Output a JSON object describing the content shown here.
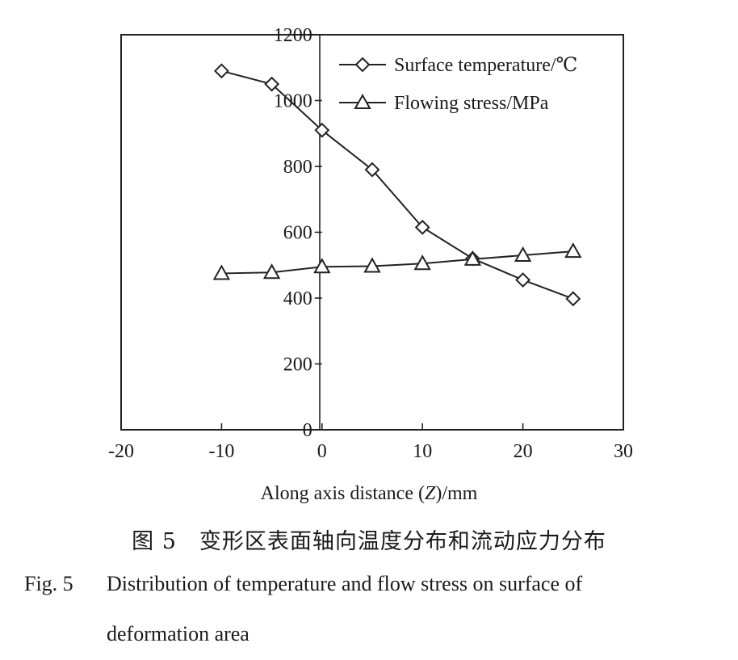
{
  "chart_data": {
    "type": "line",
    "xlabel": "Along axis distance (Z)/mm",
    "ylabel": "",
    "xlim": [
      -20,
      30
    ],
    "ylim": [
      0,
      1200
    ],
    "xticks": [
      -20,
      -10,
      0,
      10,
      20,
      30
    ],
    "yticks": [
      0,
      200,
      400,
      600,
      800,
      1000,
      1200
    ],
    "grid": false,
    "legend_position": "top-right",
    "series": [
      {
        "name": "Surface temperature/℃",
        "marker": "diamond",
        "x": [
          -10,
          -5,
          0,
          5,
          10,
          15,
          20,
          25
        ],
        "y": [
          1090,
          1050,
          910,
          790,
          615,
          520,
          455,
          398
        ]
      },
      {
        "name": "Flowing stress/MPa",
        "marker": "triangle",
        "x": [
          -10,
          -5,
          0,
          5,
          10,
          15,
          20,
          25
        ],
        "y": [
          475,
          478,
          495,
          497,
          505,
          518,
          530,
          542
        ]
      }
    ]
  },
  "caption": {
    "cn": "图 5　变形区表面轴向温度分布和流动应力分布",
    "en_label": "Fig. 5",
    "en_line1": "Distribution of temperature and flow stress on surface of",
    "en_line2": "deformation area"
  }
}
